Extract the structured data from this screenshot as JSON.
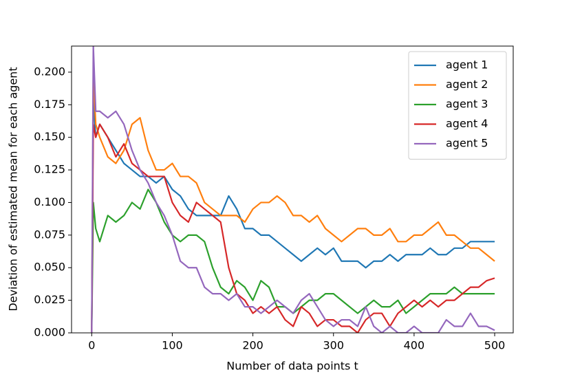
{
  "chart_data": {
    "type": "line",
    "xlabel": "Number of data points t",
    "ylabel": "Deviation of estimated mean for each agent",
    "x": [
      0,
      2,
      5,
      10,
      20,
      30,
      40,
      50,
      60,
      70,
      80,
      90,
      100,
      110,
      120,
      130,
      140,
      150,
      160,
      170,
      180,
      190,
      200,
      210,
      220,
      230,
      240,
      250,
      260,
      270,
      280,
      290,
      300,
      310,
      320,
      330,
      340,
      350,
      360,
      370,
      380,
      390,
      400,
      410,
      420,
      430,
      440,
      450,
      460,
      470,
      480,
      490,
      500
    ],
    "series": [
      {
        "name": "agent 1",
        "color": "#1f77b4",
        "values": [
          0,
          0.18,
          0.15,
          0.16,
          0.15,
          0.14,
          0.13,
          0.125,
          0.12,
          0.12,
          0.115,
          0.12,
          0.11,
          0.105,
          0.095,
          0.09,
          0.09,
          0.09,
          0.09,
          0.105,
          0.095,
          0.08,
          0.08,
          0.075,
          0.075,
          0.07,
          0.065,
          0.06,
          0.055,
          0.06,
          0.065,
          0.06,
          0.065,
          0.055,
          0.055,
          0.055,
          0.05,
          0.055,
          0.055,
          0.06,
          0.055,
          0.06,
          0.06,
          0.06,
          0.065,
          0.06,
          0.06,
          0.065,
          0.065,
          0.07,
          0.07,
          0.07,
          0.07
        ]
      },
      {
        "name": "agent 2",
        "color": "#ff7f0e",
        "values": [
          0,
          0.2,
          0.16,
          0.15,
          0.135,
          0.13,
          0.14,
          0.16,
          0.165,
          0.14,
          0.125,
          0.125,
          0.13,
          0.12,
          0.12,
          0.115,
          0.1,
          0.095,
          0.09,
          0.09,
          0.09,
          0.085,
          0.095,
          0.1,
          0.1,
          0.105,
          0.1,
          0.09,
          0.09,
          0.085,
          0.09,
          0.08,
          0.075,
          0.07,
          0.075,
          0.08,
          0.08,
          0.075,
          0.075,
          0.08,
          0.07,
          0.07,
          0.075,
          0.075,
          0.08,
          0.085,
          0.075,
          0.075,
          0.07,
          0.065,
          0.065,
          0.06,
          0.055
        ]
      },
      {
        "name": "agent 3",
        "color": "#2ca02c",
        "values": [
          0,
          0.1,
          0.08,
          0.07,
          0.09,
          0.085,
          0.09,
          0.1,
          0.095,
          0.11,
          0.1,
          0.085,
          0.075,
          0.07,
          0.075,
          0.075,
          0.07,
          0.05,
          0.035,
          0.03,
          0.04,
          0.035,
          0.025,
          0.04,
          0.035,
          0.02,
          0.02,
          0.015,
          0.02,
          0.025,
          0.025,
          0.03,
          0.03,
          0.025,
          0.02,
          0.015,
          0.02,
          0.025,
          0.02,
          0.02,
          0.025,
          0.015,
          0.02,
          0.025,
          0.03,
          0.03,
          0.03,
          0.035,
          0.03,
          0.03,
          0.03,
          0.03,
          0.03
        ]
      },
      {
        "name": "agent 4",
        "color": "#d62728",
        "values": [
          0,
          0.16,
          0.15,
          0.16,
          0.15,
          0.135,
          0.145,
          0.13,
          0.125,
          0.12,
          0.12,
          0.12,
          0.1,
          0.09,
          0.085,
          0.1,
          0.095,
          0.09,
          0.085,
          0.05,
          0.03,
          0.025,
          0.015,
          0.02,
          0.015,
          0.02,
          0.01,
          0.005,
          0.02,
          0.015,
          0.005,
          0.01,
          0.01,
          0.005,
          0.005,
          0,
          0.01,
          0.015,
          0.015,
          0.005,
          0.015,
          0.02,
          0.025,
          0.02,
          0.025,
          0.02,
          0.025,
          0.025,
          0.03,
          0.035,
          0.035,
          0.04,
          0.042
        ]
      },
      {
        "name": "agent 5",
        "color": "#9467bd",
        "values": [
          0,
          0.22,
          0.17,
          0.17,
          0.165,
          0.17,
          0.16,
          0.14,
          0.125,
          0.115,
          0.1,
          0.09,
          0.075,
          0.055,
          0.05,
          0.05,
          0.035,
          0.03,
          0.03,
          0.025,
          0.03,
          0.02,
          0.02,
          0.015,
          0.02,
          0.025,
          0.02,
          0.015,
          0.025,
          0.03,
          0.02,
          0.01,
          0.005,
          0.01,
          0.01,
          0.005,
          0.02,
          0.005,
          0,
          0.005,
          0,
          0,
          0.005,
          0,
          0,
          0,
          0.01,
          0.005,
          0.005,
          0.015,
          0.005,
          0.005,
          0.002
        ]
      }
    ],
    "xlim": [
      -25,
      523
    ],
    "xticks": [
      0,
      100,
      200,
      300,
      400,
      500
    ],
    "ylim": [
      0,
      0.22
    ],
    "yticks": [
      {
        "value": 0,
        "label": "0.000"
      },
      {
        "value": 0.025,
        "label": "0.025"
      },
      {
        "value": 0.05,
        "label": "0.050"
      },
      {
        "value": 0.075,
        "label": "0.075"
      },
      {
        "value": 0.1,
        "label": "0.100"
      },
      {
        "value": 0.125,
        "label": "0.125"
      },
      {
        "value": 0.15,
        "label": "0.150"
      },
      {
        "value": 0.175,
        "label": "0.175"
      },
      {
        "value": 0.2,
        "label": "0.200"
      }
    ],
    "legend": "upper-right",
    "grid": false
  }
}
